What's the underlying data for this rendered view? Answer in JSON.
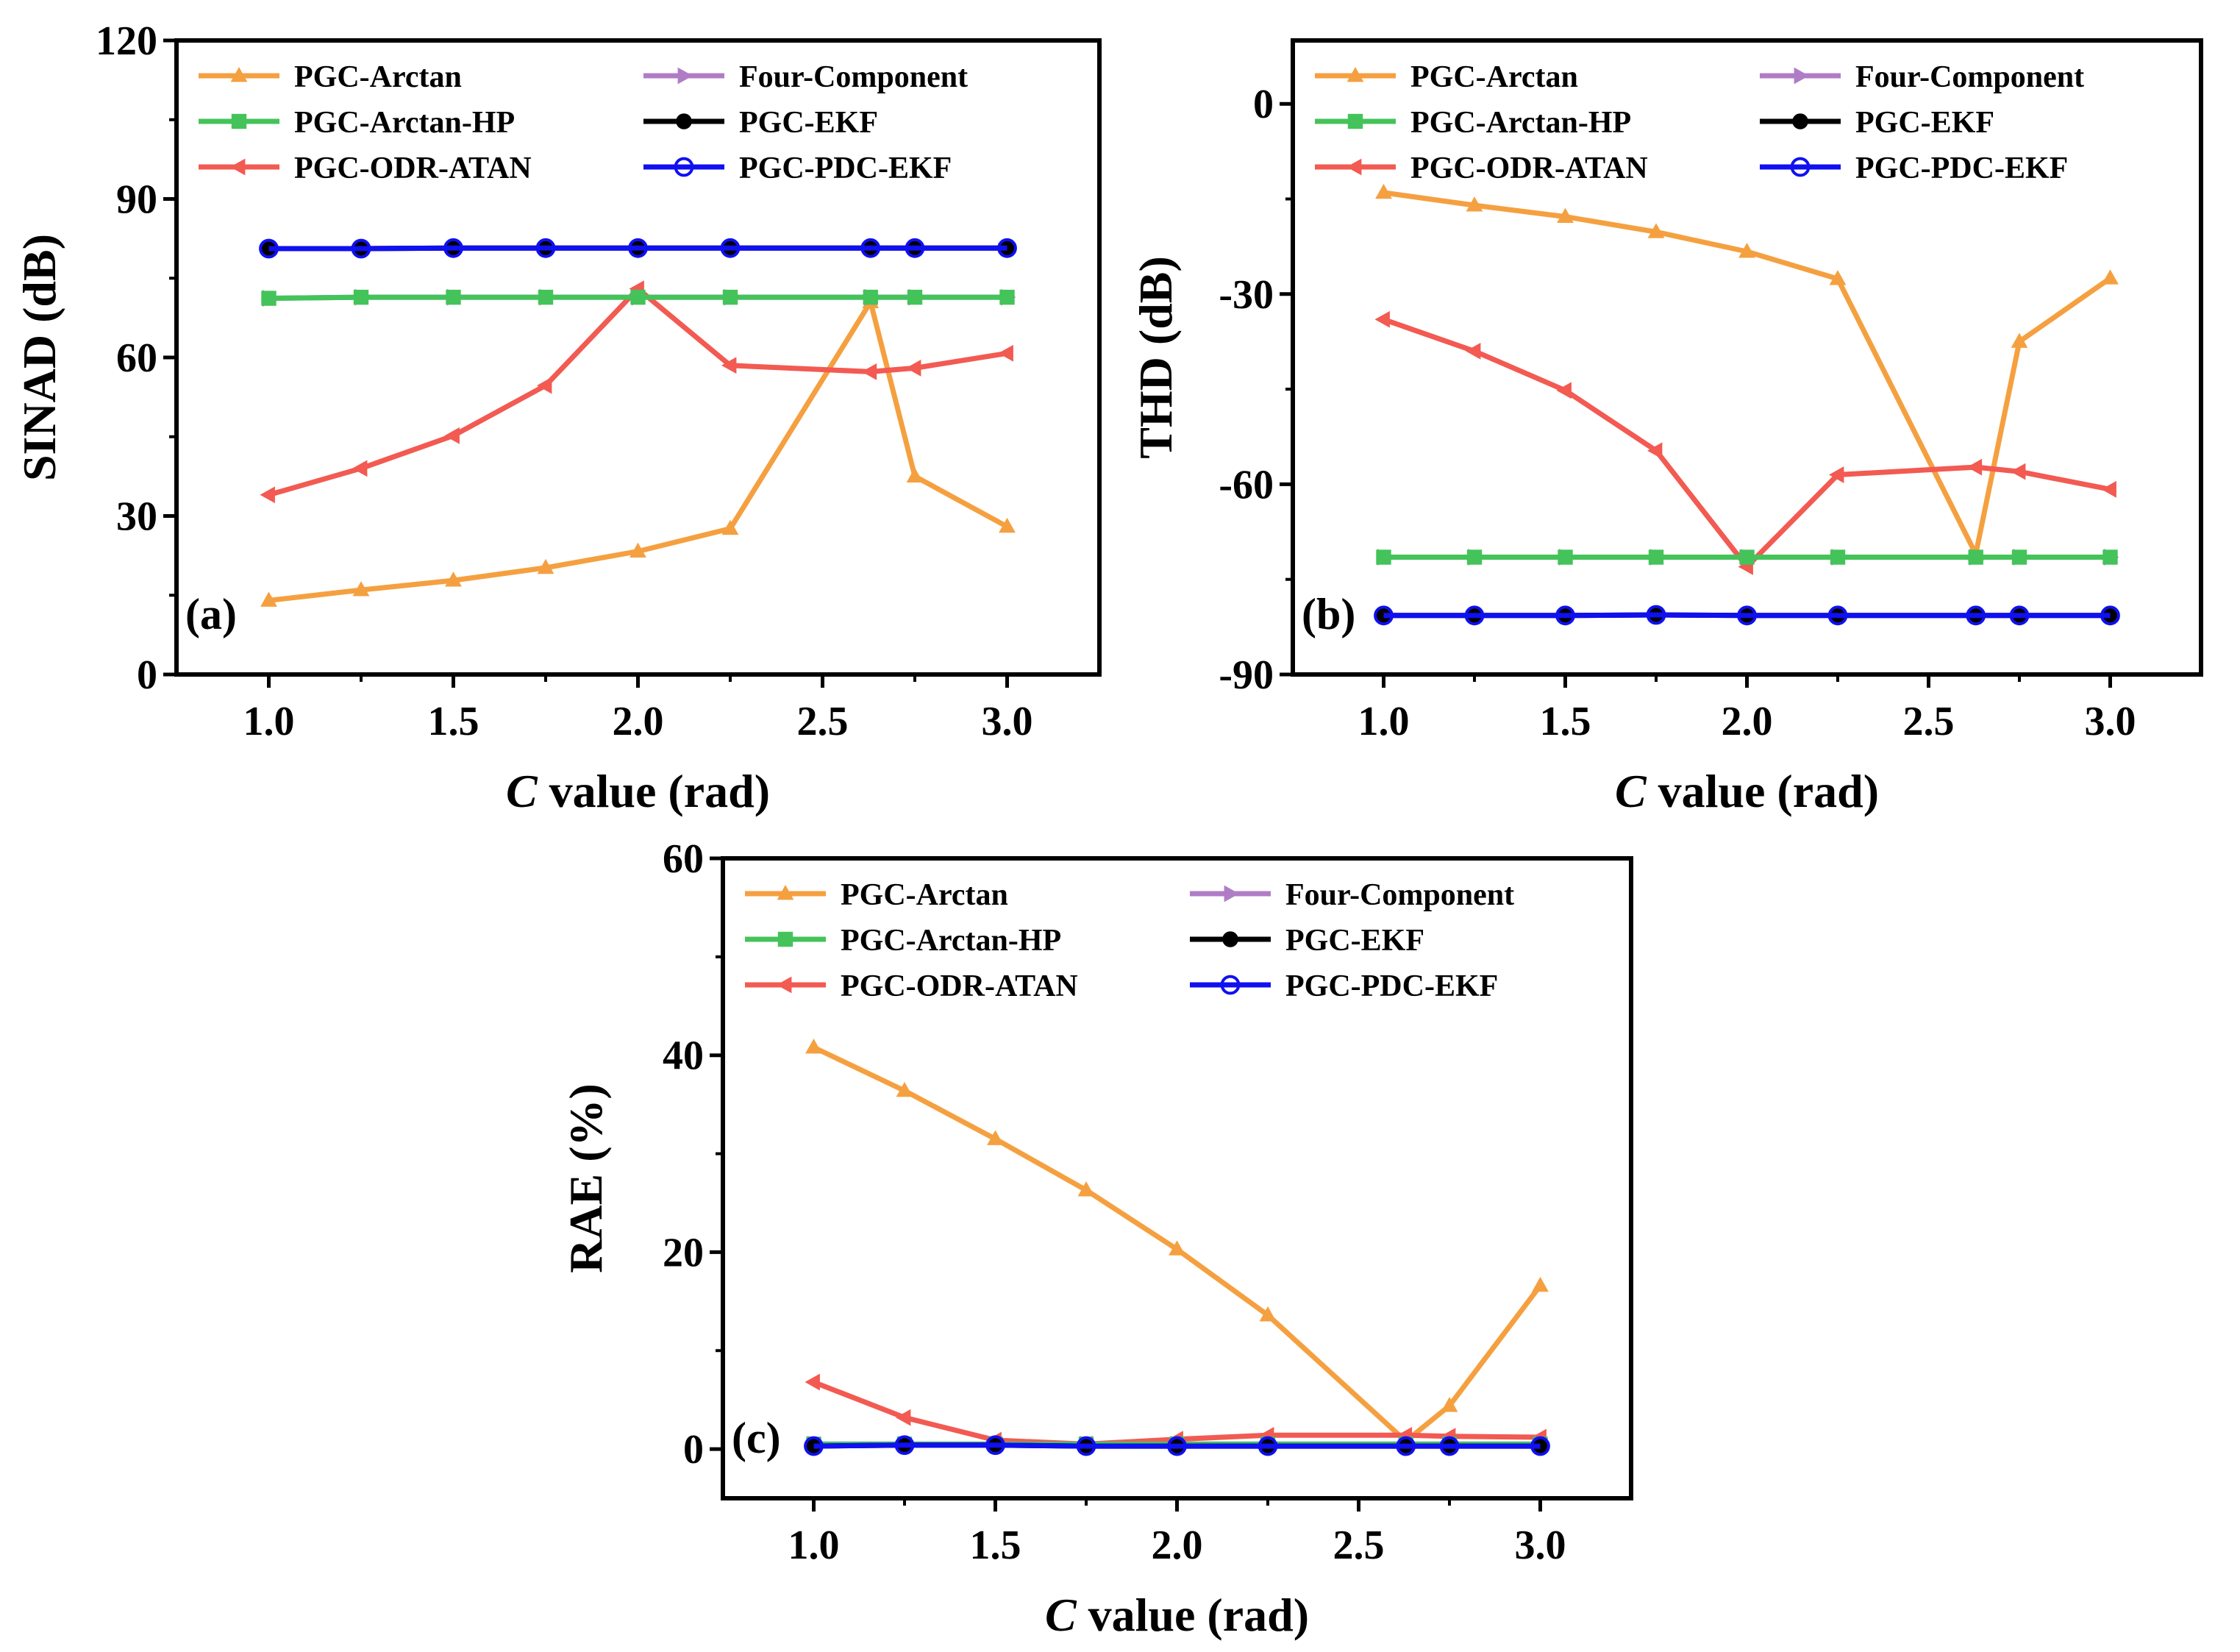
{
  "chart_data": [
    {
      "type": "line",
      "panel_label": "(a)",
      "xlabel_italic": "C",
      "xlabel_rest": " value (rad)",
      "ylabel": "SINAD (dB)",
      "xlim": [
        0.75,
        3.25
      ],
      "ylim": [
        0,
        120
      ],
      "xticks": [
        1.0,
        1.5,
        2.0,
        2.5,
        3.0
      ],
      "xtick_labels": [
        "1.0",
        "1.5",
        "2.0",
        "2.5",
        "3.0"
      ],
      "yticks": [
        0,
        30,
        60,
        90,
        120
      ],
      "ytick_labels": [
        "0",
        "30",
        "60",
        "90",
        "120"
      ],
      "legend_position": "top",
      "series": [
        {
          "name": "PGC-Arctan",
          "color": "#F5A040",
          "marker": "triangle-up",
          "x": [
            1.0,
            1.25,
            1.5,
            1.75,
            2.0,
            2.25,
            2.63,
            2.75,
            3.0
          ],
          "y": [
            14,
            16,
            17.8,
            20.2,
            23.3,
            27.6,
            70.5,
            37.5,
            28
          ]
        },
        {
          "name": "Four-Component",
          "color": "#B07CC6",
          "marker": "triangle-right",
          "x": [
            1.0,
            1.25,
            1.5,
            1.75,
            2.0,
            2.25,
            2.63,
            2.75,
            3.0
          ],
          "y": [
            71.2,
            71.4,
            71.4,
            71.4,
            71.4,
            71.4,
            71.4,
            71.4,
            71.4
          ]
        },
        {
          "name": "PGC-Arctan-HP",
          "color": "#44C35A",
          "marker": "square",
          "x": [
            1.0,
            1.25,
            1.5,
            1.75,
            2.0,
            2.25,
            2.63,
            2.75,
            3.0
          ],
          "y": [
            71.2,
            71.4,
            71.4,
            71.4,
            71.4,
            71.4,
            71.4,
            71.4,
            71.4
          ]
        },
        {
          "name": "PGC-EKF",
          "color": "#000000",
          "marker": "circle-filled",
          "x": [
            1.0,
            1.25,
            1.5,
            1.75,
            2.0,
            2.25,
            2.63,
            2.75,
            3.0
          ],
          "y": [
            80.6,
            80.6,
            80.7,
            80.7,
            80.7,
            80.7,
            80.7,
            80.7,
            80.7
          ]
        },
        {
          "name": "PGC-ODR-ATAN",
          "color": "#F25A52",
          "marker": "triangle-left",
          "x": [
            1.0,
            1.25,
            1.5,
            1.75,
            2.0,
            2.25,
            2.63,
            2.75,
            3.0
          ],
          "y": [
            34,
            39,
            45.2,
            54.7,
            73,
            58.5,
            57.3,
            58,
            60.8
          ]
        },
        {
          "name": "PGC-PDC-EKF",
          "color": "#1010F0",
          "marker": "circle-open",
          "x": [
            1.0,
            1.25,
            1.5,
            1.75,
            2.0,
            2.25,
            2.63,
            2.75,
            3.0
          ],
          "y": [
            80.6,
            80.6,
            80.7,
            80.7,
            80.7,
            80.7,
            80.7,
            80.7,
            80.7
          ]
        }
      ]
    },
    {
      "type": "line",
      "panel_label": "(b)",
      "xlabel_italic": "C",
      "xlabel_rest": " value (rad)",
      "ylabel": "THD (dB)",
      "xlim": [
        0.75,
        3.25
      ],
      "ylim": [
        -90,
        10
      ],
      "xticks": [
        1.0,
        1.5,
        2.0,
        2.5,
        3.0
      ],
      "xtick_labels": [
        "1.0",
        "1.5",
        "2.0",
        "2.5",
        "3.0"
      ],
      "yticks": [
        -90,
        -60,
        -30,
        0
      ],
      "ytick_labels": [
        "-90",
        "-60",
        "-30",
        "0"
      ],
      "legend_position": "top",
      "series": [
        {
          "name": "PGC-Arctan",
          "color": "#F5A040",
          "marker": "triangle-up",
          "x": [
            1.0,
            1.25,
            1.5,
            1.75,
            2.0,
            2.25,
            2.63,
            2.75,
            3.0
          ],
          "y": [
            -14,
            -16,
            -17.8,
            -20.2,
            -23.3,
            -27.6,
            -71,
            -37.5,
            -27.5
          ]
        },
        {
          "name": "Four-Component",
          "color": "#B07CC6",
          "marker": "triangle-right",
          "x": [
            1.0,
            1.25,
            1.5,
            1.75,
            2.0,
            2.25,
            2.63,
            2.75,
            3.0
          ],
          "y": [
            -71.5,
            -71.5,
            -71.5,
            -71.5,
            -71.5,
            -71.5,
            -71.5,
            -71.5,
            -71.5
          ]
        },
        {
          "name": "PGC-Arctan-HP",
          "color": "#44C35A",
          "marker": "square",
          "x": [
            1.0,
            1.25,
            1.5,
            1.75,
            2.0,
            2.25,
            2.63,
            2.75,
            3.0
          ],
          "y": [
            -71.5,
            -71.5,
            -71.5,
            -71.5,
            -71.5,
            -71.5,
            -71.5,
            -71.5,
            -71.5
          ]
        },
        {
          "name": "PGC-EKF",
          "color": "#000000",
          "marker": "circle-filled",
          "x": [
            1.0,
            1.25,
            1.5,
            1.75,
            2.0,
            2.25,
            2.63,
            2.75,
            3.0
          ],
          "y": [
            -80.7,
            -80.7,
            -80.7,
            -80.6,
            -80.7,
            -80.7,
            -80.7,
            -80.7,
            -80.7
          ]
        },
        {
          "name": "PGC-ODR-ATAN",
          "color": "#F25A52",
          "marker": "triangle-left",
          "x": [
            1.0,
            1.25,
            1.5,
            1.75,
            2.0,
            2.25,
            2.63,
            2.75,
            3.0
          ],
          "y": [
            -34,
            -39,
            -45.2,
            -54.7,
            -73,
            -58.5,
            -57.3,
            -58,
            -60.8
          ]
        },
        {
          "name": "PGC-PDC-EKF",
          "color": "#1010F0",
          "marker": "circle-open",
          "x": [
            1.0,
            1.25,
            1.5,
            1.75,
            2.0,
            2.25,
            2.63,
            2.75,
            3.0
          ],
          "y": [
            -80.7,
            -80.7,
            -80.7,
            -80.6,
            -80.7,
            -80.7,
            -80.7,
            -80.7,
            -80.7
          ]
        }
      ]
    },
    {
      "type": "line",
      "panel_label": "(c)",
      "xlabel_italic": "C",
      "xlabel_rest": " value (rad)",
      "ylabel": "RAE (%)",
      "xlim": [
        0.75,
        3.25
      ],
      "ylim": [
        -5,
        60
      ],
      "xticks": [
        1.0,
        1.5,
        2.0,
        2.5,
        3.0
      ],
      "xtick_labels": [
        "1.0",
        "1.5",
        "2.0",
        "2.5",
        "3.0"
      ],
      "yticks": [
        0,
        20,
        40,
        60
      ],
      "ytick_labels": [
        "0",
        "20",
        "40",
        "60"
      ],
      "legend_position": "top",
      "series": [
        {
          "name": "PGC-Arctan",
          "color": "#F5A040",
          "marker": "triangle-up",
          "x": [
            1.0,
            1.25,
            1.5,
            1.75,
            2.0,
            2.25,
            2.63,
            2.75,
            3.0
          ],
          "y": [
            40.8,
            36.4,
            31.5,
            26.3,
            20.3,
            13.6,
            0.8,
            4.4,
            16.6
          ]
        },
        {
          "name": "Four-Component",
          "color": "#B07CC6",
          "marker": "triangle-right",
          "x": [
            1.0,
            1.25,
            1.5,
            1.75,
            2.0,
            2.25,
            2.63,
            2.75,
            3.0
          ],
          "y": [
            0.5,
            0.5,
            0.5,
            0.5,
            0.5,
            0.5,
            0.5,
            0.5,
            0.5
          ]
        },
        {
          "name": "PGC-Arctan-HP",
          "color": "#44C35A",
          "marker": "square",
          "x": [
            1.0,
            1.25,
            1.5,
            1.75,
            2.0,
            2.25,
            2.63,
            2.75,
            3.0
          ],
          "y": [
            0.5,
            0.5,
            0.5,
            0.5,
            0.5,
            0.5,
            0.5,
            0.5,
            0.5
          ]
        },
        {
          "name": "PGC-EKF",
          "color": "#000000",
          "marker": "circle-filled",
          "x": [
            1.0,
            1.25,
            1.5,
            1.75,
            2.0,
            2.25,
            2.63,
            2.75,
            3.0
          ],
          "y": [
            0.3,
            0.4,
            0.4,
            0.3,
            0.3,
            0.3,
            0.3,
            0.3,
            0.3
          ]
        },
        {
          "name": "PGC-ODR-ATAN",
          "color": "#F25A52",
          "marker": "triangle-left",
          "x": [
            1.0,
            1.25,
            1.5,
            1.75,
            2.0,
            2.25,
            2.63,
            2.75,
            3.0
          ],
          "y": [
            6.8,
            3.2,
            0.9,
            0.5,
            1.0,
            1.4,
            1.4,
            1.3,
            1.2
          ]
        },
        {
          "name": "PGC-PDC-EKF",
          "color": "#1010F0",
          "marker": "circle-open",
          "x": [
            1.0,
            1.25,
            1.5,
            1.75,
            2.0,
            2.25,
            2.63,
            2.75,
            3.0
          ],
          "y": [
            0.3,
            0.4,
            0.4,
            0.3,
            0.3,
            0.3,
            0.3,
            0.3,
            0.3
          ]
        }
      ]
    }
  ]
}
